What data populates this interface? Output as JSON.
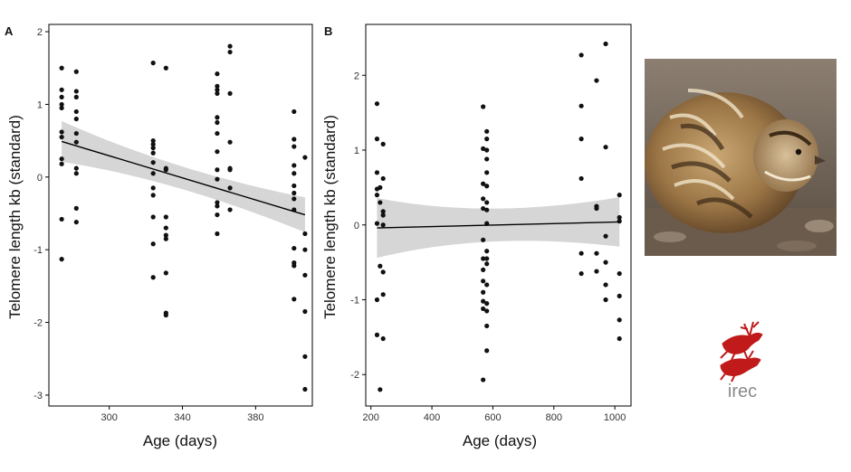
{
  "chart_data": [
    {
      "type": "scatter",
      "panel": "A",
      "xlabel": "Age (days)",
      "ylabel": "Telomere length kb (standard)",
      "xlim": [
        267,
        411
      ],
      "ylim": [
        -3.15,
        2.1
      ],
      "xticks": [
        300,
        340,
        380
      ],
      "yticks": [
        -3,
        -2,
        -1,
        0,
        1,
        2
      ],
      "grid": false,
      "points": [
        [
          274,
          1.5
        ],
        [
          274,
          1.2
        ],
        [
          274,
          1.1
        ],
        [
          274,
          1.0
        ],
        [
          274,
          0.95
        ],
        [
          274,
          0.62
        ],
        [
          274,
          0.55
        ],
        [
          274,
          0.25
        ],
        [
          274,
          0.18
        ],
        [
          274,
          -0.58
        ],
        [
          274,
          -1.13
        ],
        [
          282,
          1.45
        ],
        [
          282,
          1.18
        ],
        [
          282,
          1.1
        ],
        [
          282,
          0.9
        ],
        [
          282,
          0.8
        ],
        [
          282,
          0.6
        ],
        [
          282,
          0.48
        ],
        [
          282,
          0.12
        ],
        [
          282,
          0.05
        ],
        [
          282,
          -0.43
        ],
        [
          282,
          -0.62
        ],
        [
          324,
          1.57
        ],
        [
          324,
          0.5
        ],
        [
          324,
          0.45
        ],
        [
          324,
          0.4
        ],
        [
          324,
          0.33
        ],
        [
          324,
          0.2
        ],
        [
          324,
          0.05
        ],
        [
          324,
          -0.15
        ],
        [
          324,
          -0.25
        ],
        [
          324,
          -0.55
        ],
        [
          324,
          -0.92
        ],
        [
          324,
          -1.38
        ],
        [
          331,
          1.5
        ],
        [
          331,
          0.12
        ],
        [
          331,
          0.1
        ],
        [
          331,
          -0.55
        ],
        [
          331,
          -0.7
        ],
        [
          331,
          -0.8
        ],
        [
          331,
          -0.85
        ],
        [
          331,
          -1.32
        ],
        [
          331,
          -1.87
        ],
        [
          331,
          -1.9
        ],
        [
          359,
          1.42
        ],
        [
          359,
          1.25
        ],
        [
          359,
          1.2
        ],
        [
          359,
          1.15
        ],
        [
          359,
          0.82
        ],
        [
          359,
          0.75
        ],
        [
          359,
          0.6
        ],
        [
          359,
          0.35
        ],
        [
          359,
          0.1
        ],
        [
          359,
          -0.03
        ],
        [
          359,
          -0.35
        ],
        [
          359,
          -0.4
        ],
        [
          359,
          -0.52
        ],
        [
          359,
          -0.78
        ],
        [
          366,
          1.8
        ],
        [
          366,
          1.72
        ],
        [
          366,
          1.15
        ],
        [
          366,
          0.48
        ],
        [
          366,
          0.12
        ],
        [
          366,
          0.1
        ],
        [
          366,
          -0.15
        ],
        [
          366,
          -0.45
        ],
        [
          401,
          0.9
        ],
        [
          401,
          0.52
        ],
        [
          401,
          0.42
        ],
        [
          401,
          0.16
        ],
        [
          401,
          0.05
        ],
        [
          401,
          -0.12
        ],
        [
          401,
          -0.22
        ],
        [
          401,
          -0.3
        ],
        [
          401,
          -0.45
        ],
        [
          401,
          -0.98
        ],
        [
          401,
          -1.18
        ],
        [
          401,
          -1.22
        ],
        [
          401,
          -1.68
        ],
        [
          407,
          0.27
        ],
        [
          407,
          -0.78
        ],
        [
          407,
          -1.0
        ],
        [
          407,
          -1.35
        ],
        [
          407,
          -1.85
        ],
        [
          407,
          -2.47
        ],
        [
          407,
          -2.92
        ]
      ],
      "fit": {
        "x": [
          274,
          407
        ],
        "y": [
          0.49,
          -0.52
        ],
        "ci": [
          0.28,
          0.24
        ]
      }
    },
    {
      "type": "scatter",
      "panel": "B",
      "xlabel": "Age (days)",
      "ylabel": "Telomere length kb (standard)",
      "xlim": [
        183,
        1053
      ],
      "ylim": [
        -2.42,
        2.68
      ],
      "xticks": [
        200,
        400,
        600,
        800,
        1000
      ],
      "yticks": [
        -2,
        -1,
        0,
        1,
        2
      ],
      "grid": false,
      "points": [
        [
          220,
          1.62
        ],
        [
          220,
          1.15
        ],
        [
          220,
          0.7
        ],
        [
          220,
          0.48
        ],
        [
          220,
          0.4
        ],
        [
          220,
          0.02
        ],
        [
          220,
          -1.0
        ],
        [
          220,
          -1.47
        ],
        [
          230,
          0.5
        ],
        [
          230,
          0.3
        ],
        [
          230,
          -0.55
        ],
        [
          230,
          -2.2
        ],
        [
          240,
          1.08
        ],
        [
          240,
          0.62
        ],
        [
          240,
          0.18
        ],
        [
          240,
          0.13
        ],
        [
          240,
          0.0
        ],
        [
          240,
          -0.63
        ],
        [
          240,
          -0.93
        ],
        [
          240,
          -1.52
        ],
        [
          568,
          1.58
        ],
        [
          568,
          1.02
        ],
        [
          568,
          0.55
        ],
        [
          568,
          0.35
        ],
        [
          568,
          0.22
        ],
        [
          568,
          -0.2
        ],
        [
          568,
          -0.45
        ],
        [
          568,
          -0.6
        ],
        [
          568,
          -0.75
        ],
        [
          568,
          -0.9
        ],
        [
          568,
          -1.02
        ],
        [
          568,
          -1.12
        ],
        [
          568,
          -2.07
        ],
        [
          580,
          1.25
        ],
        [
          580,
          1.15
        ],
        [
          580,
          1.0
        ],
        [
          580,
          0.88
        ],
        [
          580,
          0.7
        ],
        [
          580,
          0.52
        ],
        [
          580,
          0.3
        ],
        [
          580,
          0.2
        ],
        [
          580,
          0.02
        ],
        [
          580,
          -0.35
        ],
        [
          580,
          -0.45
        ],
        [
          580,
          -0.52
        ],
        [
          580,
          -0.8
        ],
        [
          580,
          -1.05
        ],
        [
          580,
          -1.15
        ],
        [
          580,
          -1.35
        ],
        [
          580,
          -1.68
        ],
        [
          890,
          2.27
        ],
        [
          890,
          1.59
        ],
        [
          890,
          1.15
        ],
        [
          890,
          0.62
        ],
        [
          890,
          -0.38
        ],
        [
          890,
          -0.65
        ],
        [
          940,
          1.93
        ],
        [
          940,
          0.25
        ],
        [
          940,
          0.22
        ],
        [
          940,
          -0.38
        ],
        [
          940,
          -0.62
        ],
        [
          970,
          2.42
        ],
        [
          970,
          1.04
        ],
        [
          970,
          -0.15
        ],
        [
          970,
          -0.5
        ],
        [
          970,
          -0.8
        ],
        [
          970,
          -1.0
        ],
        [
          1015,
          0.4
        ],
        [
          1015,
          0.1
        ],
        [
          1015,
          0.05
        ],
        [
          1015,
          -0.65
        ],
        [
          1015,
          -0.95
        ],
        [
          1015,
          -1.27
        ],
        [
          1015,
          -1.52
        ]
      ],
      "fit": {
        "x": [
          220,
          1015
        ],
        "y": [
          -0.04,
          0.04
        ],
        "ci": [
          0.4,
          0.33
        ]
      }
    }
  ],
  "colors": {
    "points": "#111111",
    "ribbon": "#d6d6d6",
    "line": "#000000",
    "logo": "#c01a1a",
    "logo_text": "#8a8a8a"
  },
  "images": {
    "photo": "common-quail-photo",
    "logo": "irec-deer-logo"
  },
  "logo_text": "irec"
}
